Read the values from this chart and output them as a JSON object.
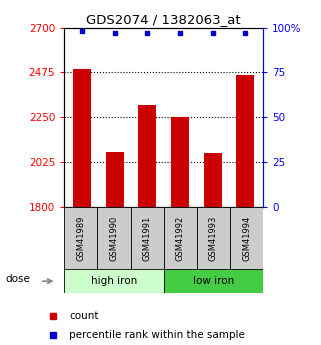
{
  "title": "GDS2074 / 1382063_at",
  "categories": [
    "GSM41989",
    "GSM41990",
    "GSM41991",
    "GSM41992",
    "GSM41993",
    "GSM41994"
  ],
  "bar_values": [
    2490,
    2075,
    2310,
    2250,
    2070,
    2460
  ],
  "percentile_values": [
    98,
    97,
    97,
    97,
    97,
    97
  ],
  "bar_color": "#cc0000",
  "dot_color": "#0000cc",
  "left_ylim": [
    1800,
    2700
  ],
  "right_ylim": [
    0,
    100
  ],
  "left_yticks": [
    1800,
    2025,
    2250,
    2475,
    2700
  ],
  "right_yticks": [
    0,
    25,
    50,
    75,
    100
  ],
  "right_yticklabels": [
    "0",
    "25",
    "50",
    "75",
    "100%"
  ],
  "group1_label": "high iron",
  "group2_label": "low iron",
  "group1_color": "#ccffcc",
  "group2_color": "#44cc44",
  "xlabel_dose": "dose",
  "legend_count": "count",
  "legend_percentile": "percentile rank within the sample",
  "dotted_lines": [
    2025,
    2250,
    2475
  ],
  "background_gray": "#cccccc",
  "fig_width": 3.21,
  "fig_height": 3.45,
  "dpi": 100
}
